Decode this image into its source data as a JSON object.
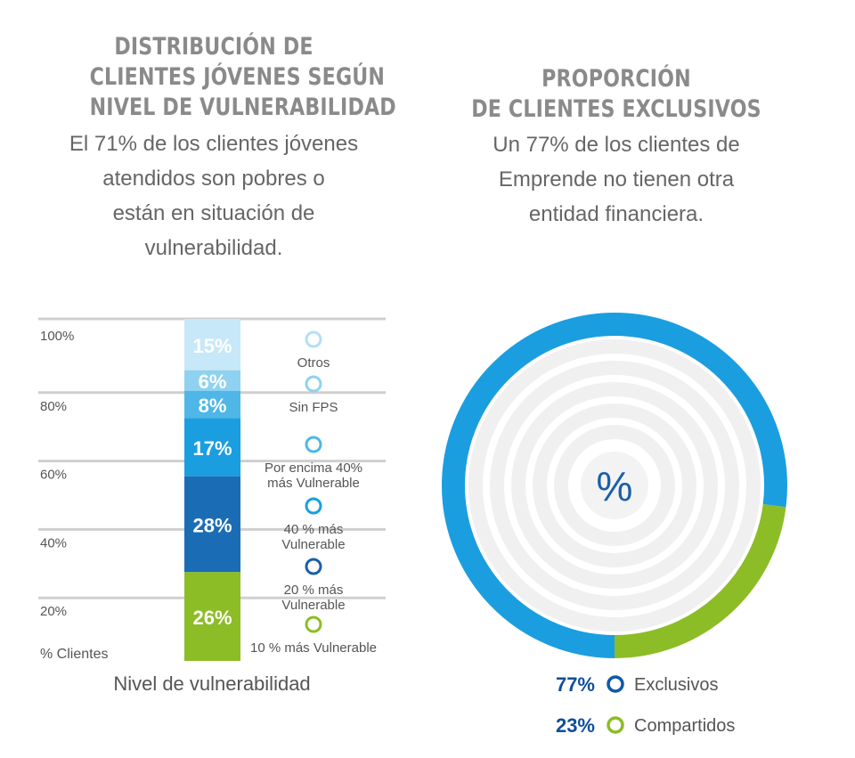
{
  "left": {
    "title_lines": [
      "DISTRIBUCIÓN DE",
      "CLIENTES JÓVENES SEGÚN",
      "NIVEL DE VULNERABILIDAD"
    ],
    "subtitle_lines": [
      "El 71% de los clientes jóvenes",
      "atendidos son pobres o",
      "están en situación de",
      "vulnerabilidad."
    ]
  },
  "right": {
    "title_lines": [
      "PROPORCIÓN",
      "DE CLIENTES EXCLUSIVOS"
    ],
    "subtitle_lines": [
      "Un 77% de los clientes de",
      "Emprende no tienen otra",
      "entidad financiera."
    ]
  },
  "chart_data": [
    {
      "type": "bar",
      "stacked": true,
      "ylabel": "% Clientes",
      "xlabel": "Nivel de vulnerabilidad",
      "yticks": [
        "20%",
        "40%",
        "60%",
        "80%",
        "100%"
      ],
      "ylim": [
        0,
        100
      ],
      "segments": [
        {
          "label": "10 % más Vulnerable",
          "value": 26,
          "display": "26%",
          "color": "#8cbd26"
        },
        {
          "label": "20 % más Vulnerable",
          "value": 28,
          "display": "28%",
          "color": "#1a6db5"
        },
        {
          "label": "40 % más Vulnerable",
          "value": 17,
          "display": "17%",
          "color": "#1a9ee0"
        },
        {
          "label": "Por encima 40% más Vulnerable",
          "value": 8,
          "display": "8%",
          "color": "#4fb6e8"
        },
        {
          "label": "Sin FPS",
          "value": 6,
          "display": "6%",
          "color": "#8fd1f0"
        },
        {
          "label": "Otros",
          "value": 15,
          "display": "15%",
          "color": "#c7e8f8"
        }
      ],
      "legend": [
        {
          "lines": [
            "Otros"
          ],
          "color": "#b3dff5"
        },
        {
          "lines": [
            "Sin FPS"
          ],
          "color": "#8fd1f0"
        },
        {
          "lines": [
            "Por encima 40%",
            "más Vulnerable"
          ],
          "color": "#4fb6e8"
        },
        {
          "lines": [
            "40 % más",
            "Vulnerable"
          ],
          "color": "#1a9ee0"
        },
        {
          "lines": [
            "20 % más",
            "Vulnerable"
          ],
          "color": "#1a5fa8"
        },
        {
          "lines": [
            "10 % más Vulnerable"
          ],
          "color": "#8cbd26"
        }
      ]
    },
    {
      "type": "pie",
      "center_label": "%",
      "slices": [
        {
          "label": "Exclusivos",
          "value": 77,
          "display": "77%",
          "color": "#1a9ee0",
          "ring_color": "#0d5aa7"
        },
        {
          "label": "Compartidos",
          "value": 23,
          "display": "23%",
          "color": "#8cbd26",
          "ring_color": "#8cbd26"
        }
      ]
    }
  ]
}
